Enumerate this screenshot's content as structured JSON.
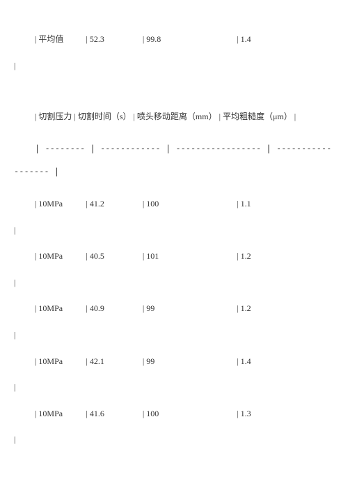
{
  "table1": {
    "avg_label": "平均值",
    "time": "52.3",
    "distance": "99.8",
    "roughness": "1.4"
  },
  "table2": {
    "headers": {
      "pressure": "切割压力",
      "time": "切割时间（s）",
      "distance": "喷头移动距离（mm）",
      "roughness": "平均粗糙度（μm）"
    },
    "rows": [
      {
        "pressure": "10MPa",
        "time": "41.2",
        "distance": "100",
        "roughness": "1.1"
      },
      {
        "pressure": "10MPa",
        "time": "40.5",
        "distance": "101",
        "roughness": "1.2"
      },
      {
        "pressure": "10MPa",
        "time": "40.9",
        "distance": "99",
        "roughness": "1.2"
      },
      {
        "pressure": "10MPa",
        "time": "42.1",
        "distance": "99",
        "roughness": "1.4"
      },
      {
        "pressure": "10MPa",
        "time": "41.6",
        "distance": "100",
        "roughness": "1.3"
      }
    ],
    "separator": {
      "col1": "--------",
      "col2": "------------",
      "col3": "-----------------",
      "col4": "------------------"
    }
  },
  "colwidths": {
    "c1": "68px",
    "c2": "76px",
    "c3": "130px",
    "c4": "50px"
  }
}
